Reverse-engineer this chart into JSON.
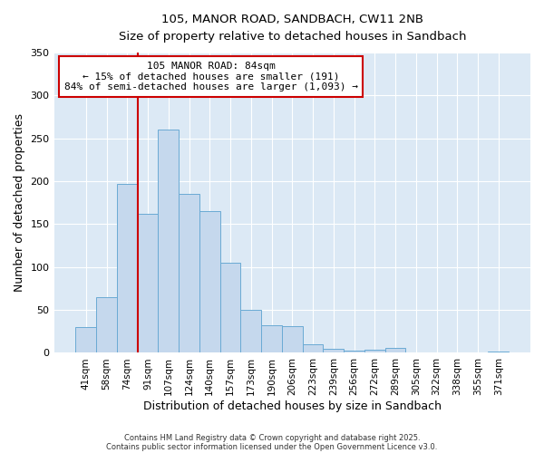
{
  "title1": "105, MANOR ROAD, SANDBACH, CW11 2NB",
  "title2": "Size of property relative to detached houses in Sandbach",
  "xlabel": "Distribution of detached houses by size in Sandbach",
  "ylabel": "Number of detached properties",
  "bar_color": "#c5d8ed",
  "bar_edge_color": "#6aaad4",
  "fig_bg_color": "#ffffff",
  "plot_bg_color": "#dce9f5",
  "grid_color": "#ffffff",
  "categories": [
    "41sqm",
    "58sqm",
    "74sqm",
    "91sqm",
    "107sqm",
    "124sqm",
    "140sqm",
    "157sqm",
    "173sqm",
    "190sqm",
    "206sqm",
    "223sqm",
    "239sqm",
    "256sqm",
    "272sqm",
    "289sqm",
    "305sqm",
    "322sqm",
    "338sqm",
    "355sqm",
    "371sqm"
  ],
  "values": [
    30,
    65,
    197,
    162,
    260,
    185,
    165,
    105,
    50,
    32,
    31,
    10,
    5,
    3,
    4,
    6,
    0,
    0,
    0,
    0,
    2
  ],
  "ylim": [
    0,
    350
  ],
  "yticks": [
    0,
    50,
    100,
    150,
    200,
    250,
    300,
    350
  ],
  "vline_x": 2.5,
  "vline_color": "#cc0000",
  "annotation_text": "105 MANOR ROAD: 84sqm\n← 15% of detached houses are smaller (191)\n84% of semi-detached houses are larger (1,093) →",
  "footer_line1": "Contains HM Land Registry data © Crown copyright and database right 2025.",
  "footer_line2": "Contains public sector information licensed under the Open Government Licence v3.0."
}
